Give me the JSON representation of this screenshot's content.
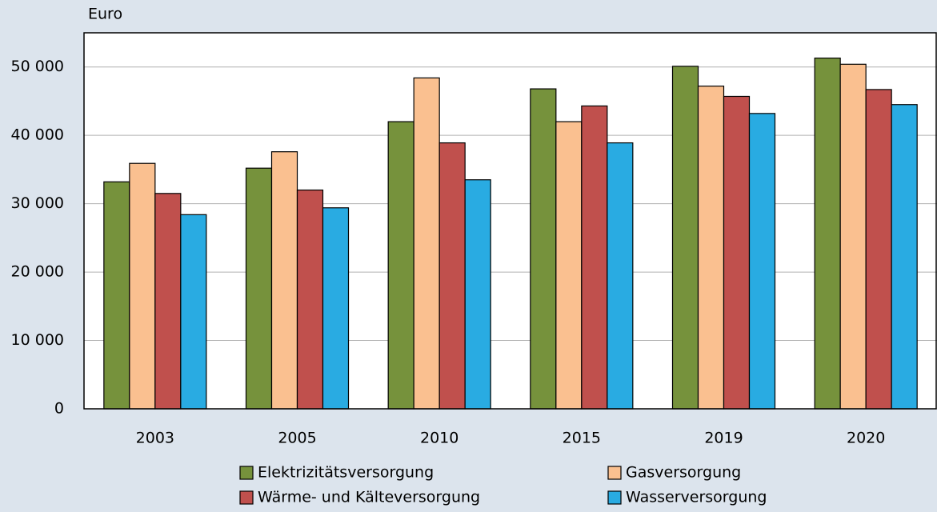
{
  "chart_data": {
    "type": "bar",
    "y_label": "Euro",
    "categories": [
      "2003",
      "2005",
      "2010",
      "2015",
      "2019",
      "2020"
    ],
    "series": [
      {
        "name": "Elektrizitätsversorgung",
        "color": "#76923c",
        "values": [
          33200,
          35200,
          42000,
          46800,
          50100,
          51300
        ]
      },
      {
        "name": "Gasversorgung",
        "color": "#fac090",
        "values": [
          35900,
          37600,
          48400,
          42000,
          47200,
          50400
        ]
      },
      {
        "name": "Wärme- und Kälteversorgung",
        "color": "#c0504d",
        "values": [
          31500,
          32000,
          38900,
          44300,
          45700,
          46700
        ]
      },
      {
        "name": "Wasserversorgung",
        "color": "#29abe2",
        "values": [
          28400,
          29400,
          33500,
          38900,
          43200,
          44500
        ]
      }
    ],
    "ylim": [
      0,
      55000
    ],
    "yticks": [
      {
        "value": 0,
        "label": "0"
      },
      {
        "value": 10000,
        "label": "10 000"
      },
      {
        "value": 20000,
        "label": "20 000"
      },
      {
        "value": 30000,
        "label": "30 000"
      },
      {
        "value": 40000,
        "label": "40 000"
      },
      {
        "value": 50000,
        "label": "50 000"
      }
    ],
    "grid": true
  }
}
